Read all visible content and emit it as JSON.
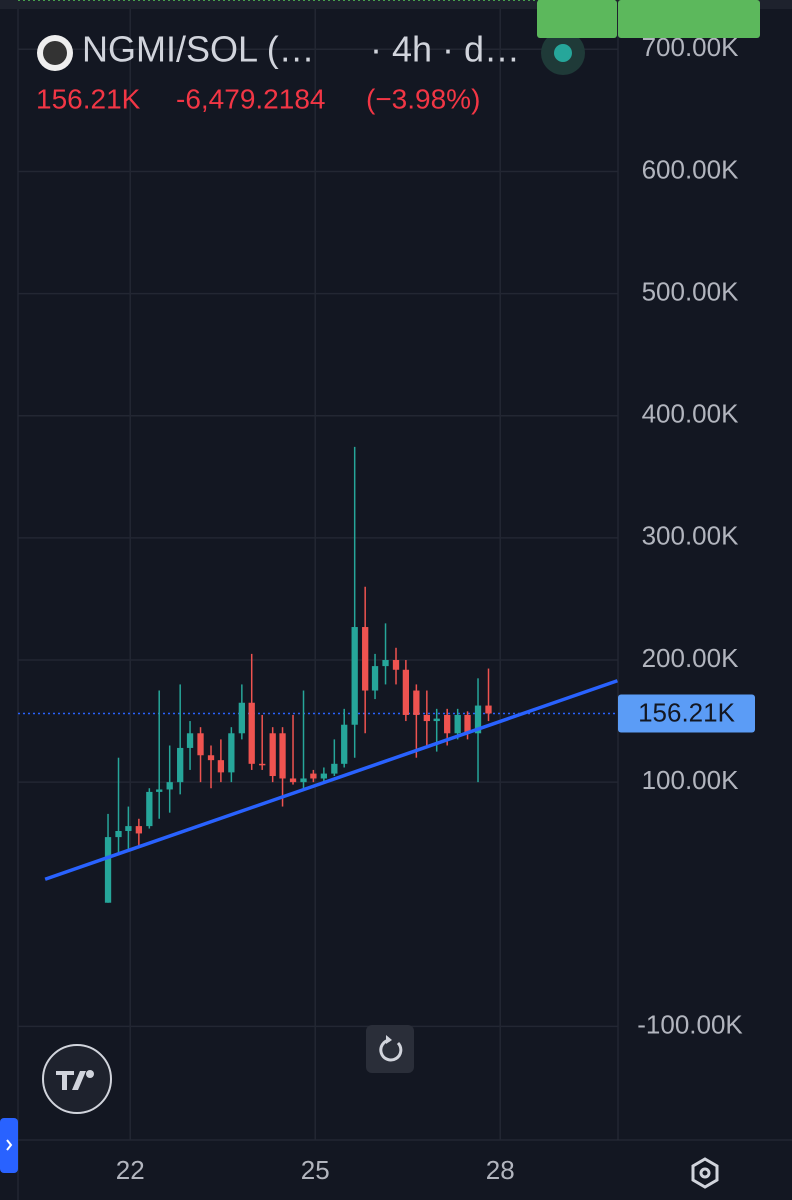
{
  "chart_data": {
    "type": "candlestick",
    "symbol": "NGMI/SOL (…",
    "interval": "· 4h · d…",
    "change": "-6,479.2184",
    "change_pct": "(−3.98%)",
    "last": {
      "value": 156210,
      "label": "156.21K"
    },
    "high": [
      74000,
      120000,
      80000,
      70000,
      95000,
      175000,
      130000,
      180000,
      150000,
      145000,
      130000,
      135000,
      145000,
      180000,
      205000,
      155000,
      145000,
      145000,
      155000,
      175000,
      110000,
      112000,
      135000,
      160000,
      374470,
      260000,
      205000,
      230000,
      210000,
      200000,
      180000,
      175000,
      160000,
      160000,
      160000,
      158000,
      185000,
      193000
    ],
    "low": [
      1256.79,
      40000,
      45000,
      48000,
      62000,
      70000,
      75000,
      90000,
      110000,
      100000,
      95000,
      100000,
      100000,
      135000,
      110000,
      110000,
      100000,
      80000,
      98000,
      95000,
      100000,
      100000,
      105000,
      112000,
      120000,
      140000,
      168000,
      180000,
      180000,
      150000,
      120000,
      130000,
      125000,
      130000,
      135000,
      135000,
      100000,
      150000
    ],
    "up_color": "#26a69a",
    "down_color": "#ef5350",
    "x": [
      21.64,
      21.81,
      21.97,
      22.14,
      22.31,
      22.47,
      22.64,
      22.81,
      22.97,
      23.14,
      23.31,
      23.47,
      23.64,
      23.81,
      23.97,
      24.14,
      24.31,
      24.47,
      24.64,
      24.81,
      24.97,
      25.14,
      25.31,
      25.47,
      25.64,
      25.81,
      25.97,
      26.14,
      26.31,
      26.47,
      26.64,
      26.81,
      26.97,
      27.14,
      27.31,
      27.47,
      27.64,
      27.81
    ],
    "open": [
      1256.79,
      55000,
      60000,
      64000,
      64000,
      92000,
      94000,
      100000,
      128000,
      140000,
      122000,
      118000,
      108000,
      140000,
      165000,
      115000,
      140000,
      140000,
      103000,
      100000,
      107000,
      103000,
      107000,
      115000,
      147000,
      227000,
      175000,
      195000,
      200000,
      192000,
      175000,
      155000,
      150000,
      155000,
      140000,
      155000,
      140000,
      162690
    ],
    "close": [
      55000,
      60000,
      64000,
      58000,
      92000,
      94000,
      100000,
      128000,
      140000,
      122000,
      118000,
      108000,
      140000,
      165000,
      115000,
      114000,
      105000,
      103000,
      100000,
      103000,
      103000,
      107000,
      115000,
      147000,
      227000,
      175000,
      195000,
      200000,
      192000,
      155000,
      155000,
      150000,
      152000,
      140000,
      155000,
      140000,
      162690,
      156210
    ],
    "trendline": {
      "x": [
        20.62,
        29.9
      ],
      "y": [
        20500,
        183000
      ],
      "color": "#2962ff"
    },
    "xlim": [
      20.18,
      29.91
    ],
    "ylim": [
      -193000,
      733000
    ],
    "xticks": [
      22,
      25,
      28
    ],
    "yticks": [
      {
        "value": 700000,
        "label": "700.00K"
      },
      {
        "value": 600000,
        "label": "600.00K"
      },
      {
        "value": 500000,
        "label": "500.00K"
      },
      {
        "value": 400000,
        "label": "400.00K"
      },
      {
        "value": 300000,
        "label": "300.00K"
      },
      {
        "value": 200000,
        "label": "200.00K"
      },
      {
        "value": 100000,
        "label": "100.00K"
      },
      {
        "value": -100000,
        "label": "-100.00K"
      }
    ],
    "grid": true
  }
}
